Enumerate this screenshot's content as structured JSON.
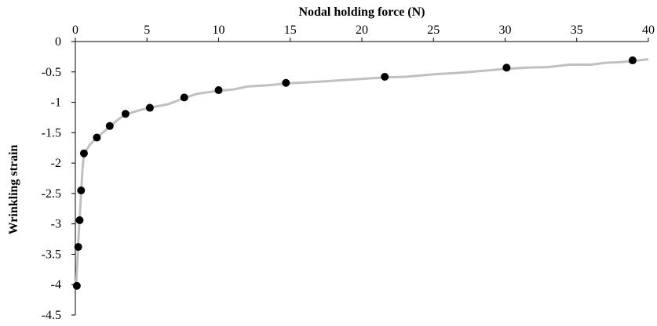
{
  "chart_data": {
    "type": "scatter",
    "title": "",
    "xlabel": "Nodal holding force (N)",
    "ylabel": "Wrinkling strain",
    "x_axis_position": "top",
    "xlim": [
      0,
      40
    ],
    "ylim": [
      -4.5,
      0
    ],
    "x_ticks": [
      0,
      5,
      10,
      15,
      20,
      25,
      30,
      35,
      40
    ],
    "y_ticks": [
      0,
      -0.5,
      -1,
      -1.5,
      -2,
      -2.5,
      -3,
      -3.5,
      -4,
      -4.5
    ],
    "x_tick_labels": [
      "0",
      "5",
      "10",
      "15",
      "20",
      "25",
      "30",
      "35",
      "40"
    ],
    "y_tick_labels": [
      "0",
      "-0.5",
      "-1",
      "-1.5",
      "-2",
      "-2.5",
      "-3",
      "-3.5",
      "-4",
      "-4.5"
    ],
    "grid": false,
    "legend": false,
    "colors": {
      "curve": "#c0c0c0",
      "points": "#000000"
    },
    "series": [
      {
        "type": "scatter",
        "points": [
          {
            "x": 0.1,
            "y": -4.02
          },
          {
            "x": 0.2,
            "y": -3.38
          },
          {
            "x": 0.3,
            "y": -2.94
          },
          {
            "x": 0.4,
            "y": -2.45
          },
          {
            "x": 0.6,
            "y": -1.84
          },
          {
            "x": 1.5,
            "y": -1.58
          },
          {
            "x": 2.4,
            "y": -1.39
          },
          {
            "x": 3.5,
            "y": -1.19
          },
          {
            "x": 5.2,
            "y": -1.09
          },
          {
            "x": 7.6,
            "y": -0.92
          },
          {
            "x": 10.0,
            "y": -0.8
          },
          {
            "x": 14.7,
            "y": -0.68
          },
          {
            "x": 21.6,
            "y": -0.58
          },
          {
            "x": 30.1,
            "y": -0.43
          },
          {
            "x": 38.9,
            "y": -0.31
          }
        ]
      },
      {
        "type": "line",
        "points": [
          {
            "x": 0.05,
            "y": -4.08
          },
          {
            "x": 0.12,
            "y": -3.7
          },
          {
            "x": 0.2,
            "y": -3.3
          },
          {
            "x": 0.3,
            "y": -2.9
          },
          {
            "x": 0.4,
            "y": -2.5
          },
          {
            "x": 0.5,
            "y": -2.1
          },
          {
            "x": 0.6,
            "y": -1.85
          },
          {
            "x": 1.0,
            "y": -1.7
          },
          {
            "x": 1.5,
            "y": -1.58
          },
          {
            "x": 2.4,
            "y": -1.4
          },
          {
            "x": 3.0,
            "y": -1.28
          },
          {
            "x": 3.5,
            "y": -1.2
          },
          {
            "x": 4.5,
            "y": -1.13
          },
          {
            "x": 5.2,
            "y": -1.09
          },
          {
            "x": 6.5,
            "y": -1.03
          },
          {
            "x": 7.6,
            "y": -0.93
          },
          {
            "x": 8.5,
            "y": -0.86
          },
          {
            "x": 10.0,
            "y": -0.81
          },
          {
            "x": 11.0,
            "y": -0.79
          },
          {
            "x": 12.0,
            "y": -0.74
          },
          {
            "x": 13.5,
            "y": -0.72
          },
          {
            "x": 14.7,
            "y": -0.69
          },
          {
            "x": 17.0,
            "y": -0.66
          },
          {
            "x": 19.0,
            "y": -0.63
          },
          {
            "x": 21.6,
            "y": -0.59
          },
          {
            "x": 23.0,
            "y": -0.58
          },
          {
            "x": 25.0,
            "y": -0.54
          },
          {
            "x": 27.0,
            "y": -0.51
          },
          {
            "x": 29.0,
            "y": -0.47
          },
          {
            "x": 30.1,
            "y": -0.45
          },
          {
            "x": 31.5,
            "y": -0.43
          },
          {
            "x": 33.0,
            "y": -0.42
          },
          {
            "x": 34.5,
            "y": -0.38
          },
          {
            "x": 36.0,
            "y": -0.38
          },
          {
            "x": 37.0,
            "y": -0.35
          },
          {
            "x": 38.0,
            "y": -0.34
          },
          {
            "x": 39.0,
            "y": -0.32
          },
          {
            "x": 40.0,
            "y": -0.29
          }
        ]
      }
    ]
  }
}
